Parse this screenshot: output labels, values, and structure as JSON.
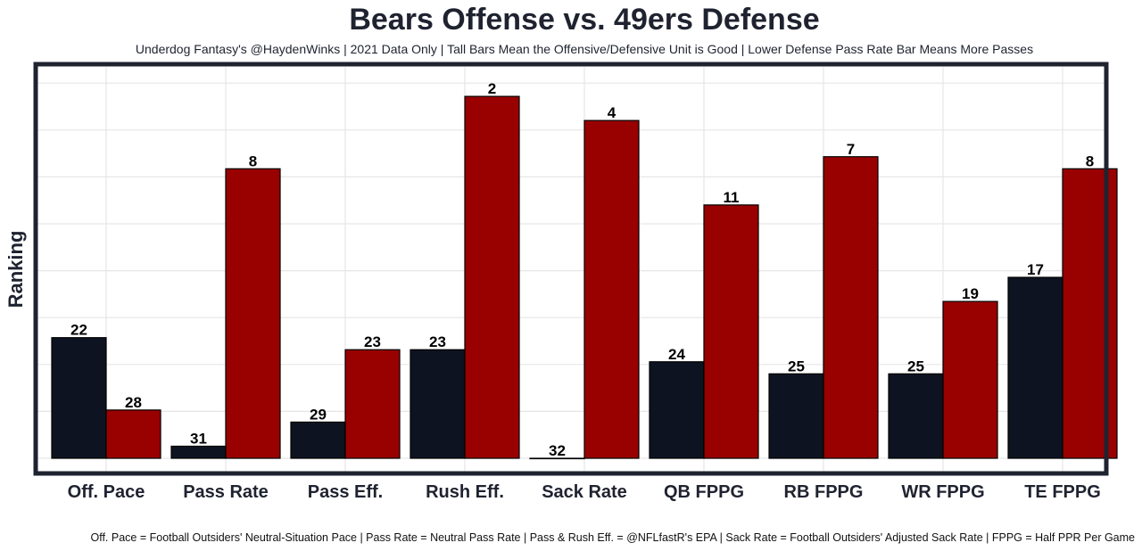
{
  "chart_data": {
    "type": "bar",
    "title": "Bears Offense vs. 49ers Defense",
    "subtitle": "Underdog Fantasy's @HaydenWinks | 2021 Data Only | Tall Bars Mean the Offensive/Defensive Unit is Good | Lower Defense Pass Rate Bar Means More Passes",
    "caption": "Off. Pace = Football Outsiders' Neutral-Situation Pace | Pass Rate = Neutral Pass Rate | Pass & Rush Eff. = @NFLfastR's EPA | Sack Rate = Football Outsiders' Adjusted Sack Rate | FPPG = Half PPR Per Game",
    "xlabel": "",
    "ylabel": "Ranking",
    "categories": [
      "Off. Pace",
      "Pass Rate",
      "Pass Eff.",
      "Rush Eff.",
      "Sack Rate",
      "QB FPPG",
      "RB FPPG",
      "WR FPPG",
      "TE FPPG"
    ],
    "series": [
      {
        "values": [
          22,
          31,
          29,
          23,
          32,
          24,
          25,
          25,
          17
        ],
        "color": "#0d1320"
      },
      {
        "values": [
          28,
          8,
          23,
          2,
          4,
          11,
          7,
          19,
          8
        ],
        "color": "#990000"
      }
    ],
    "bar_height_rule": "32 minus ranking",
    "grid": true,
    "legend": "none"
  }
}
